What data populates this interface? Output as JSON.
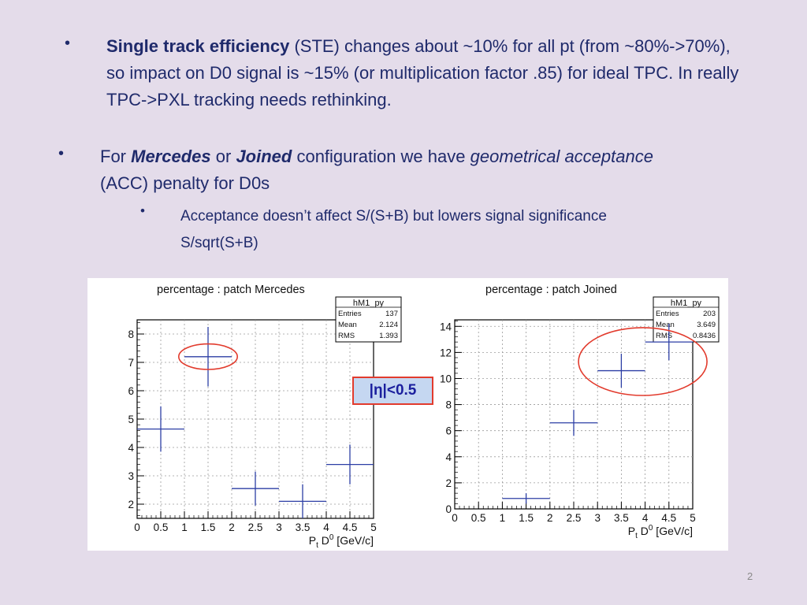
{
  "slide": {
    "bullet1": {
      "bold": "Single track efficiency",
      "rest": " (STE) changes about ~10% for all pt (from ~80%->70%), so impact on D0 signal is ~15% (or multiplication factor .85) for ideal TPC. In really TPC->PXL tracking needs rethinking."
    },
    "bullet2": {
      "p1": "For ",
      "mercedes": "Mercedes",
      "p2": " or ",
      "joined": "Joined",
      "p3": " configuration we have ",
      "geo": "geometrical acceptance",
      "p4": " (ACC) penalty for D0s"
    },
    "bullet3": {
      "line1": "Acceptance doesn’t affect S/(S+B) but lowers signal significance",
      "line2": "S/sqrt(S+B)"
    },
    "eta_label": "|η|<0.5",
    "page_number": "2",
    "bullet_glyph": "•"
  },
  "chart_data": [
    {
      "type": "scatter",
      "title": "percentage : patch Mercedes",
      "xlabel": "P_t D^0 [GeV/c]",
      "xlabel_parts": {
        "a": "P",
        "sub": "t",
        "b": " D",
        "sup": "0",
        "c": " [GeV/c]"
      },
      "xlim": [
        0,
        5
      ],
      "ylim": [
        1.5,
        8.5
      ],
      "xticks": [
        "0",
        "0.5",
        "1",
        "1.5",
        "2",
        "2.5",
        "3",
        "3.5",
        "4",
        "4.5",
        "5"
      ],
      "yticks": [
        "2",
        "3",
        "4",
        "5",
        "6",
        "7",
        "8"
      ],
      "grid": true,
      "stats": {
        "name": "hM1_py",
        "rows": [
          [
            "Entries",
            "137"
          ],
          [
            "Mean",
            "2.124"
          ],
          [
            "RMS",
            "1.393"
          ]
        ]
      },
      "points": [
        {
          "x": 0.5,
          "xerr": 0.5,
          "y": 4.65,
          "yerr": 0.8
        },
        {
          "x": 1.5,
          "xerr": 0.5,
          "y": 7.2,
          "yerr": 1.05
        },
        {
          "x": 2.5,
          "xerr": 0.5,
          "y": 2.55,
          "yerr": 0.6
        },
        {
          "x": 3.5,
          "xerr": 0.5,
          "y": 2.1,
          "yerr": 0.6
        },
        {
          "x": 4.5,
          "xerr": 0.5,
          "y": 3.4,
          "yerr": 0.7
        }
      ],
      "highlight": {
        "x": 1.5,
        "y": 7.2,
        "rx": 0.62,
        "ry": 0.45,
        "color": "#e23b2d"
      },
      "marker_color": "#2c3ea5"
    },
    {
      "type": "scatter",
      "title": "percentage : patch Joined",
      "xlabel": "P_t D^0 [GeV/c]",
      "xlabel_parts": {
        "a": "P",
        "sub": "t",
        "b": " D",
        "sup": "0",
        "c": " [GeV/c]"
      },
      "xlim": [
        0,
        5
      ],
      "ylim": [
        0,
        14.5
      ],
      "xticks": [
        "0",
        "0.5",
        "1",
        "1.5",
        "2",
        "2.5",
        "3",
        "3.5",
        "4",
        "4.5",
        "5"
      ],
      "yticks": [
        "0",
        "2",
        "4",
        "6",
        "8",
        "10",
        "12",
        "14"
      ],
      "grid": true,
      "stats": {
        "name": "hM1_py",
        "rows": [
          [
            "Entries",
            "203"
          ],
          [
            "Mean",
            "3.649"
          ],
          [
            "RMS",
            "0.8436"
          ]
        ]
      },
      "points": [
        {
          "x": 1.5,
          "xerr": 0.5,
          "y": 0.8,
          "yerr": 0.4
        },
        {
          "x": 2.5,
          "xerr": 0.5,
          "y": 6.6,
          "yerr": 1.0
        },
        {
          "x": 3.5,
          "xerr": 0.5,
          "y": 10.6,
          "yerr": 1.3
        },
        {
          "x": 4.5,
          "xerr": 0.5,
          "y": 12.8,
          "yerr": 1.4
        }
      ],
      "highlight": {
        "x": 3.95,
        "y": 11.3,
        "rx": 1.35,
        "ry": 2.6,
        "color": "#e23b2d"
      },
      "marker_color": "#2c3ea5"
    }
  ]
}
